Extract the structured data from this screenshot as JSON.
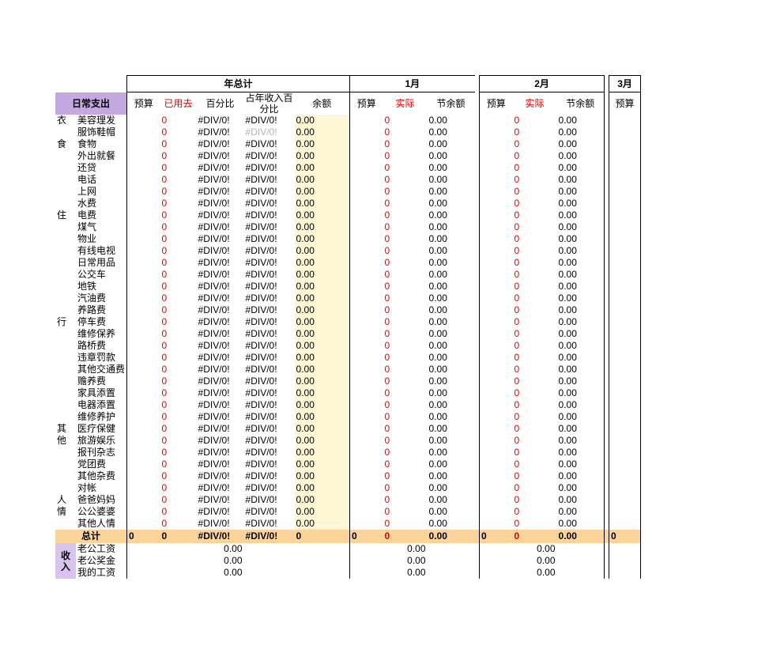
{
  "title": "日常支出",
  "income_title": "收入",
  "year_header": "年总计",
  "month_headers": [
    "1月",
    "2月",
    "3月"
  ],
  "subheaders": {
    "budget": "预算",
    "used": "已用去",
    "pct": "百分比",
    "ypct_line1": "占年收入百",
    "ypct_line2": "分比",
    "balance": "余额",
    "actual": "实际",
    "saving": "节余额"
  },
  "div0": "#DIV/0!",
  "zero": "0",
  "zdec": "0.00",
  "total_label": "总计",
  "categories": [
    {
      "label": "衣",
      "rows": [
        "美容理发",
        "服饰鞋帽"
      ],
      "start": 0
    },
    {
      "label": "食",
      "rows": [
        "食物",
        "外出就餐"
      ],
      "start": 2
    },
    {
      "label": "住",
      "rows": [
        "还贷",
        "电话",
        "上网",
        "水费",
        "电费",
        "煤气",
        "物业",
        "有线电视",
        "日常用品"
      ],
      "start": 4,
      "labelRow": 4
    },
    {
      "label": "行",
      "rows": [
        "公交车",
        "地铁",
        "汽油费",
        "养路费",
        "停车费",
        "维修保养",
        "路桥费",
        "违章罚款",
        "其他交通费"
      ],
      "start": 13,
      "labelRow": 4
    },
    {
      "label": "其他",
      "rows": [
        "赡养费",
        "家具添置",
        "电器添置",
        "维修养护",
        "医疗保健",
        "旅游娱乐",
        "报刊杂志",
        "党团费",
        "其他杂费",
        "对帐"
      ],
      "start": 22,
      "labelRow": 4,
      "twoLine": true
    },
    {
      "label": "人情",
      "rows": [
        "爸爸妈妈",
        "公公婆婆",
        "其他人情"
      ],
      "start": 32,
      "labelRow": 0,
      "twoLine": true
    }
  ],
  "items": [
    "美容理发",
    "服饰鞋帽",
    "食物",
    "外出就餐",
    "还贷",
    "电话",
    "上网",
    "水费",
    "电费",
    "煤气",
    "物业",
    "有线电视",
    "日常用品",
    "公交车",
    "地铁",
    "汽油费",
    "养路费",
    "停车费",
    "维修保养",
    "路桥费",
    "违章罚款",
    "其他交通费",
    "赡养费",
    "家具添置",
    "电器添置",
    "维修养护",
    "医疗保健",
    "旅游娱乐",
    "报刊杂志",
    "党团费",
    "其他杂费",
    "对帐",
    "爸爸妈妈",
    "公公婆婆",
    "其他人情"
  ],
  "grayRowIndex": 1,
  "catLabels": {
    "0": "衣",
    "2": "食",
    "8": "住",
    "17": "行",
    "26": "其",
    "27": "他",
    "32": "人",
    "33": "情"
  },
  "totals": {
    "budget": "0",
    "used": "0",
    "pct": "#DIV/0!",
    "ypct": "#DIV/0!",
    "balance": "0",
    "m1_bud": "0",
    "m1_act": "0",
    "m1_sav": "0.00",
    "m2_bud": "0",
    "m2_act": "0",
    "m2_sav": "0.00",
    "m3_bud": "0"
  },
  "income_items": [
    "老公工资",
    "老公奖金",
    "我的工资"
  ],
  "colors": {
    "purple": "#c6a8e0",
    "purple2": "#d8c4ec",
    "orange": "#fcd39a",
    "red": "#e00000",
    "gray": "#b0b0b0",
    "yellow": "#fff6d5",
    "border": "#000000"
  }
}
